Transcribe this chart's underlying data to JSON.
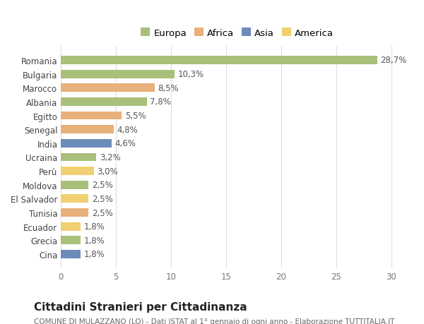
{
  "countries": [
    "Romania",
    "Bulgaria",
    "Marocco",
    "Albania",
    "Egitto",
    "Senegal",
    "India",
    "Ucraina",
    "Perù",
    "Moldova",
    "El Salvador",
    "Tunisia",
    "Ecuador",
    "Grecia",
    "Cina"
  ],
  "values": [
    28.7,
    10.3,
    8.5,
    7.8,
    5.5,
    4.8,
    4.6,
    3.2,
    3.0,
    2.5,
    2.5,
    2.5,
    1.8,
    1.8,
    1.8
  ],
  "labels": [
    "28,7%",
    "10,3%",
    "8,5%",
    "7,8%",
    "5,5%",
    "4,8%",
    "4,6%",
    "3,2%",
    "3,0%",
    "2,5%",
    "2,5%",
    "2,5%",
    "1,8%",
    "1,8%",
    "1,8%"
  ],
  "continents": [
    "Europa",
    "Europa",
    "Africa",
    "Europa",
    "Africa",
    "Africa",
    "Asia",
    "Europa",
    "America",
    "Europa",
    "America",
    "Africa",
    "America",
    "Europa",
    "Asia"
  ],
  "continent_colors": {
    "Europa": "#a8c07a",
    "Africa": "#e8b07a",
    "Asia": "#6b8cba",
    "America": "#f0d070"
  },
  "legend_order": [
    "Europa",
    "Africa",
    "Asia",
    "America"
  ],
  "legend_colors": {
    "Europa": "#a8c07a",
    "Africa": "#e8b07a",
    "Asia": "#6b8cba",
    "America": "#f0d070"
  },
  "title": "Cittadini Stranieri per Cittadinanza",
  "subtitle": "COMUNE DI MULAZZANO (LO) - Dati ISTAT al 1° gennaio di ogni anno - Elaborazione TUTTITALIA.IT",
  "xlim": [
    0,
    32
  ],
  "xticks": [
    0,
    5,
    10,
    15,
    20,
    25,
    30
  ],
  "background_color": "#ffffff",
  "grid_color": "#dddddd",
  "bar_height": 0.6,
  "label_fontsize": 8.5,
  "tick_fontsize": 8.5,
  "title_fontsize": 11,
  "subtitle_fontsize": 7.5
}
